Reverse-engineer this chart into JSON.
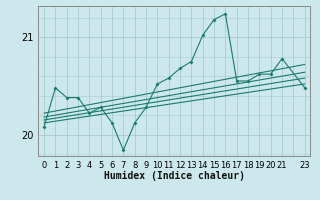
{
  "background_color": "#cce8ec",
  "grid_color": "#aacccc",
  "line_color": "#1a7a6e",
  "xlabel": "Humidex (Indice chaleur)",
  "yticks": [
    20,
    21
  ],
  "ylim": [
    19.78,
    21.32
  ],
  "xlim": [
    -0.5,
    23.5
  ],
  "xtick_labels": [
    "0",
    "1",
    "2",
    "3",
    "4",
    "5",
    "6",
    "7",
    "8",
    "9",
    "10",
    "11",
    "12",
    "13",
    "14",
    "15",
    "16",
    "17",
    "18",
    "19",
    "20",
    "21",
    "",
    "23"
  ],
  "straight_lines": [
    [
      [
        0,
        23
      ],
      [
        20.12,
        20.52
      ]
    ],
    [
      [
        0,
        23
      ],
      [
        20.15,
        20.58
      ]
    ],
    [
      [
        0,
        23
      ],
      [
        20.18,
        20.64
      ]
    ],
    [
      [
        0,
        23
      ],
      [
        20.22,
        20.72
      ]
    ]
  ],
  "jagged_series": {
    "x": [
      0,
      1,
      2,
      3,
      4,
      5,
      6,
      7,
      8,
      9,
      10,
      11,
      12,
      13,
      14,
      15,
      16,
      17,
      18,
      19,
      20,
      21,
      23
    ],
    "y": [
      20.08,
      20.48,
      20.38,
      20.38,
      20.22,
      20.28,
      20.12,
      19.84,
      20.12,
      20.28,
      20.52,
      20.58,
      20.68,
      20.75,
      21.02,
      21.18,
      21.24,
      20.55,
      20.55,
      20.62,
      20.62,
      20.78,
      20.48
    ]
  }
}
